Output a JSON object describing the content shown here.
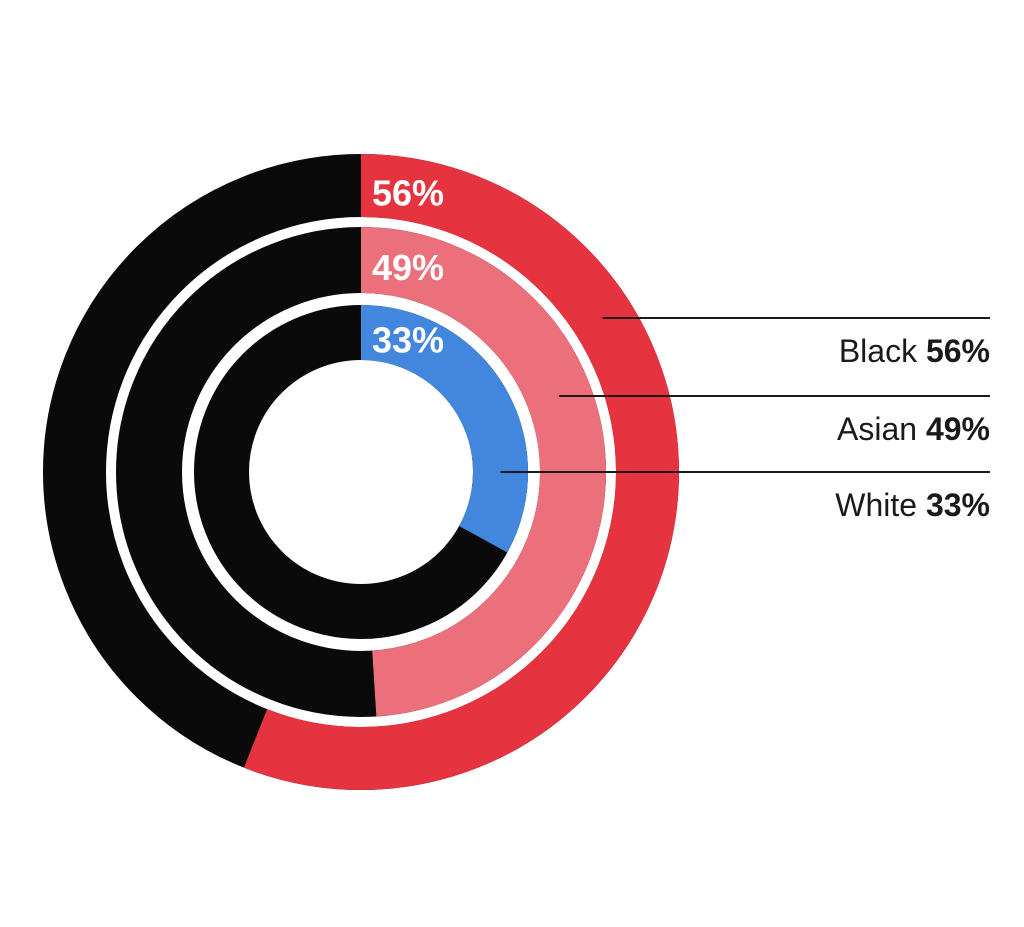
{
  "chart_data": {
    "type": "pie",
    "variant": "concentric-donut",
    "title": "",
    "start_angle_deg": 0,
    "direction": "clockwise",
    "legend_position": "right",
    "background": "#ffffff",
    "remainder_color": "#0a0a0a",
    "leader_line_color": "#1a1a1a",
    "legend_text_color": "#1a1a1a",
    "ring_label_color": "#ffffff",
    "rings": [
      {
        "name": "Black",
        "value": 56,
        "value_label": "56%",
        "legend_label": "Black 56%",
        "color": "#e53340"
      },
      {
        "name": "Asian",
        "value": 49,
        "value_label": "49%",
        "legend_label": "Asian 49%",
        "color": "#ec707c"
      },
      {
        "name": "White",
        "value": 33,
        "value_label": "33%",
        "legend_label": "White 33%",
        "color": "#4286de"
      }
    ]
  }
}
